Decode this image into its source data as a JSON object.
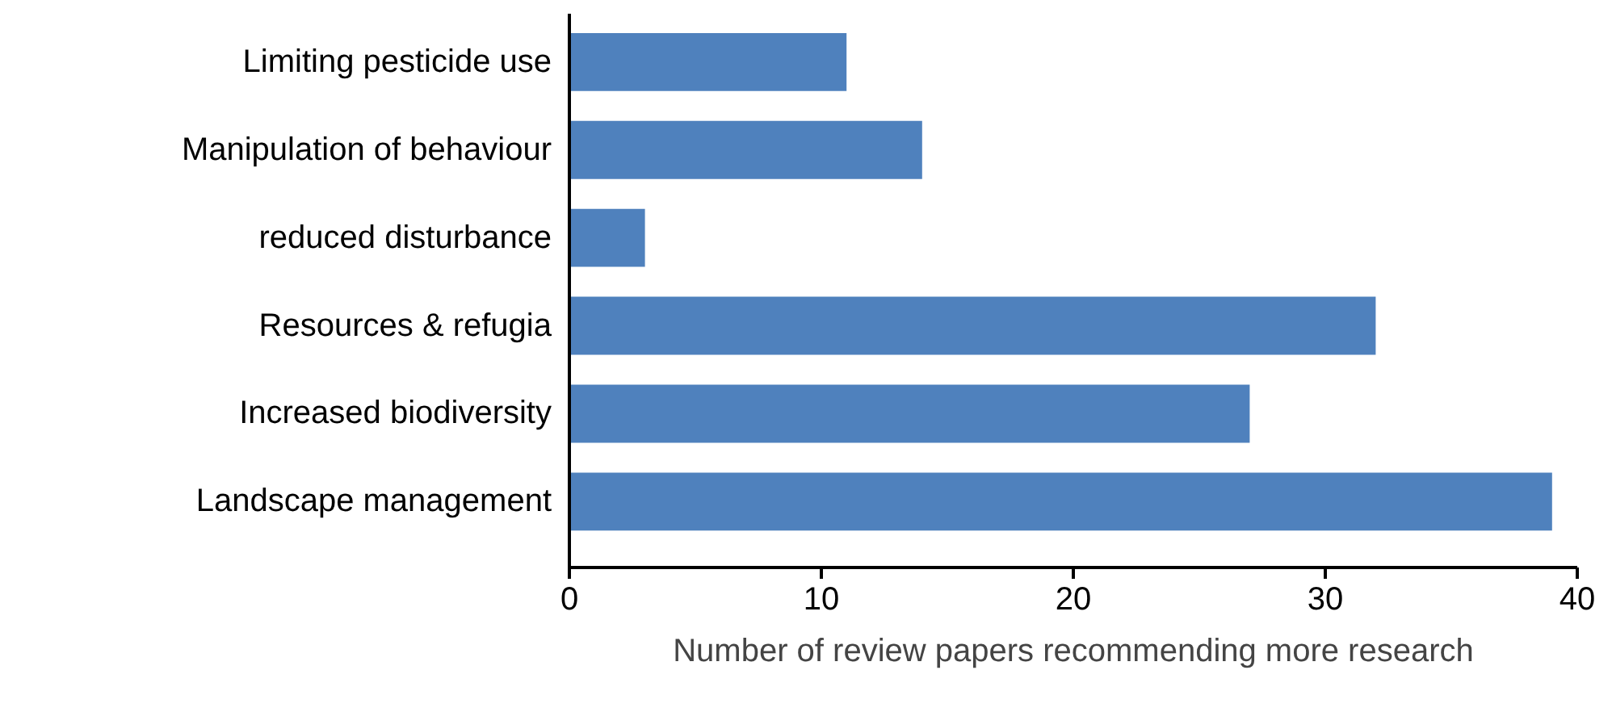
{
  "chart_data": {
    "type": "bar",
    "orientation": "horizontal",
    "categories": [
      "Limiting pesticide use",
      "Manipulation of behaviour",
      "reduced disturbance",
      "Resources & refugia",
      "Increased biodiversity",
      "Landscape management"
    ],
    "values": [
      11,
      14,
      3,
      32,
      27,
      39
    ],
    "color": "#4f81bd",
    "xlabel": "Number of review papers recommending more research",
    "xlim": [
      0,
      40
    ],
    "xticks": [
      0,
      10,
      20,
      30,
      40
    ],
    "grid": false
  }
}
